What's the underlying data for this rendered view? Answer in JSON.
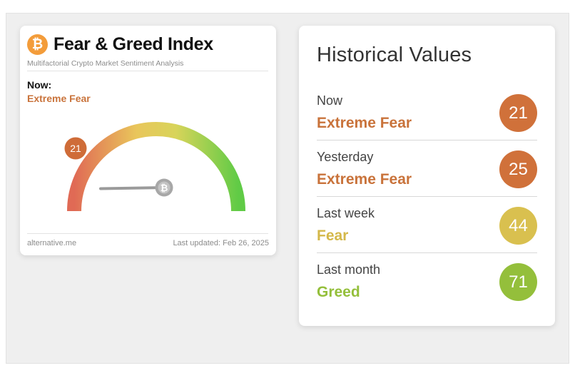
{
  "fear_greed_card": {
    "title": "Fear & Greed Index",
    "subtitle": "Multifactorial Crypto Market Sentiment Analysis",
    "logo_symbol": "₿",
    "now_label": "Now:",
    "now_value": "Extreme Fear",
    "gauge": {
      "value": 21,
      "min": 0,
      "max": 100,
      "label": "21",
      "needle_hub_symbol": "₿",
      "gradient_colors": [
        "#e06a55",
        "#e9c65b",
        "#d8d45a",
        "#60cb46"
      ]
    },
    "footer_left": "alternative.me",
    "footer_right": "Last updated: Feb 26, 2025"
  },
  "historical": {
    "title": "Historical Values",
    "rows": [
      {
        "period": "Now",
        "label": "Extreme Fear",
        "value": "21",
        "color": "#d0713a",
        "text_color": "#c9733b"
      },
      {
        "period": "Yesterday",
        "label": "Extreme Fear",
        "value": "25",
        "color": "#d0713a",
        "text_color": "#c9733b"
      },
      {
        "period": "Last week",
        "label": "Fear",
        "value": "44",
        "color": "#d9c04f",
        "text_color": "#d4b84a"
      },
      {
        "period": "Last month",
        "label": "Greed",
        "value": "71",
        "color": "#94bf3b",
        "text_color": "#94bf3b"
      }
    ]
  },
  "colors": {
    "background": "#efefef",
    "card": "#ffffff",
    "bitcoin_orange": "#f39c3a"
  }
}
